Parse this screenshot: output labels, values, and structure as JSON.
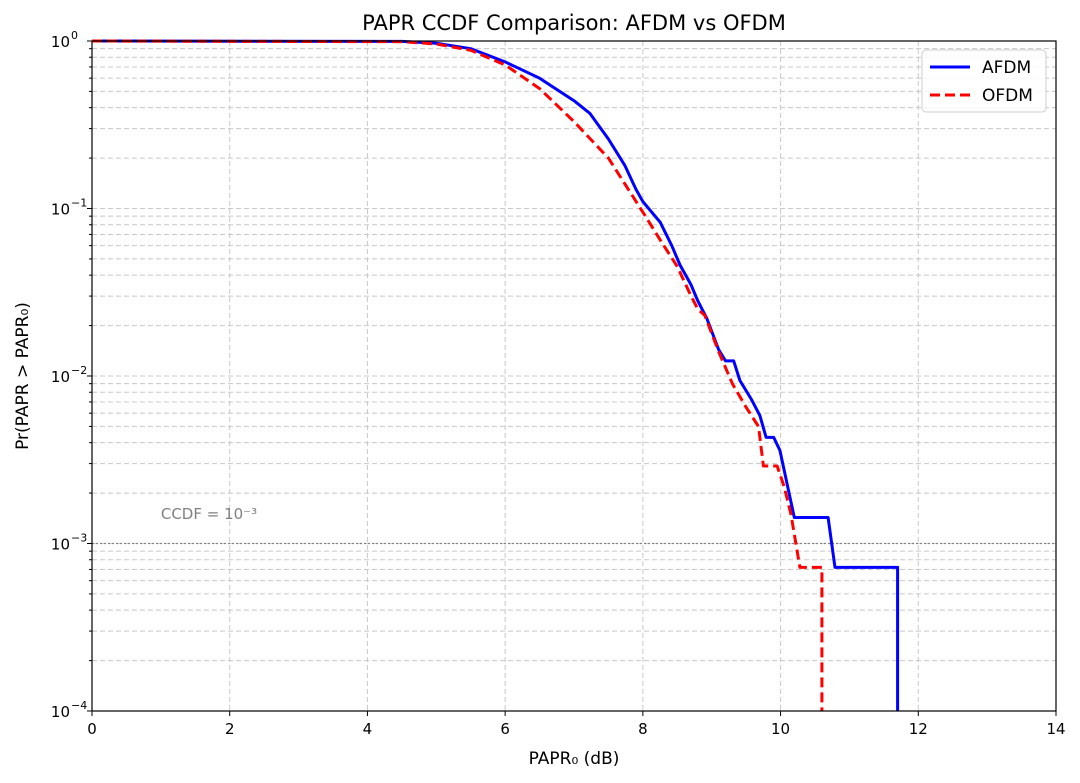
{
  "chart_data": {
    "type": "line",
    "title": "PAPR CCDF Comparison: AFDM vs OFDM",
    "xlabel": "PAPR₀ (dB)",
    "ylabel": "Pr(PAPR > PAPR₀)",
    "xlim": [
      0,
      14
    ],
    "ylim": [
      0.0001,
      1
    ],
    "yscale": "log",
    "xticks": [
      0,
      2,
      4,
      6,
      8,
      10,
      12,
      14
    ],
    "xtick_labels": [
      "0",
      "2",
      "4",
      "6",
      "8",
      "10",
      "12",
      "14"
    ],
    "yticks": [
      1,
      0.1,
      0.01,
      0.001,
      0.0001
    ],
    "ytick_labels": [
      {
        "base": "10",
        "exp": "0"
      },
      {
        "base": "10",
        "exp": "−1"
      },
      {
        "base": "10",
        "exp": "−2"
      },
      {
        "base": "10",
        "exp": "−3"
      },
      {
        "base": "10",
        "exp": "−4"
      }
    ],
    "grid": true,
    "legend": "top-right",
    "reference_line": {
      "y": 0.001,
      "label": "CCDF = 10⁻³",
      "label_x": 1.0,
      "label_y": 0.0015,
      "color": "#808080"
    },
    "series": [
      {
        "name": "AFDM",
        "color": "#0000ff",
        "style": "solid",
        "x": [
          0,
          4.5,
          5.0,
          5.5,
          6.0,
          6.5,
          7.0,
          7.23,
          7.5,
          7.74,
          7.9,
          8.0,
          8.25,
          8.42,
          8.54,
          8.7,
          8.8,
          8.93,
          9.1,
          9.2,
          9.32,
          9.41,
          9.58,
          9.7,
          9.79,
          9.9,
          9.99,
          10.2,
          10.69,
          10.79,
          11.7,
          11.7
        ],
        "y": [
          1,
          0.995,
          0.97,
          0.9,
          0.75,
          0.6,
          0.44,
          0.37,
          0.26,
          0.18,
          0.13,
          0.11,
          0.083,
          0.06,
          0.046,
          0.035,
          0.028,
          0.022,
          0.0144,
          0.0123,
          0.0123,
          0.0094,
          0.0072,
          0.0058,
          0.0043,
          0.0043,
          0.0036,
          0.00143,
          0.00143,
          0.00072,
          0.00072,
          0.0001
        ]
      },
      {
        "name": "OFDM",
        "color": "#ff0000",
        "style": "dashed",
        "x": [
          0,
          4.5,
          5.0,
          5.5,
          6.0,
          6.5,
          7.0,
          7.5,
          8.0,
          8.25,
          8.5,
          8.7,
          8.8,
          8.9,
          9.1,
          9.3,
          9.5,
          9.68,
          9.75,
          9.95,
          10.05,
          10.15,
          10.28,
          10.6,
          10.6
        ],
        "y": [
          1,
          0.99,
          0.96,
          0.88,
          0.72,
          0.52,
          0.33,
          0.2,
          0.095,
          0.065,
          0.045,
          0.03,
          0.025,
          0.023,
          0.014,
          0.009,
          0.0065,
          0.005,
          0.0029,
          0.0029,
          0.0022,
          0.0015,
          0.00072,
          0.00072,
          0.0001
        ]
      }
    ]
  }
}
